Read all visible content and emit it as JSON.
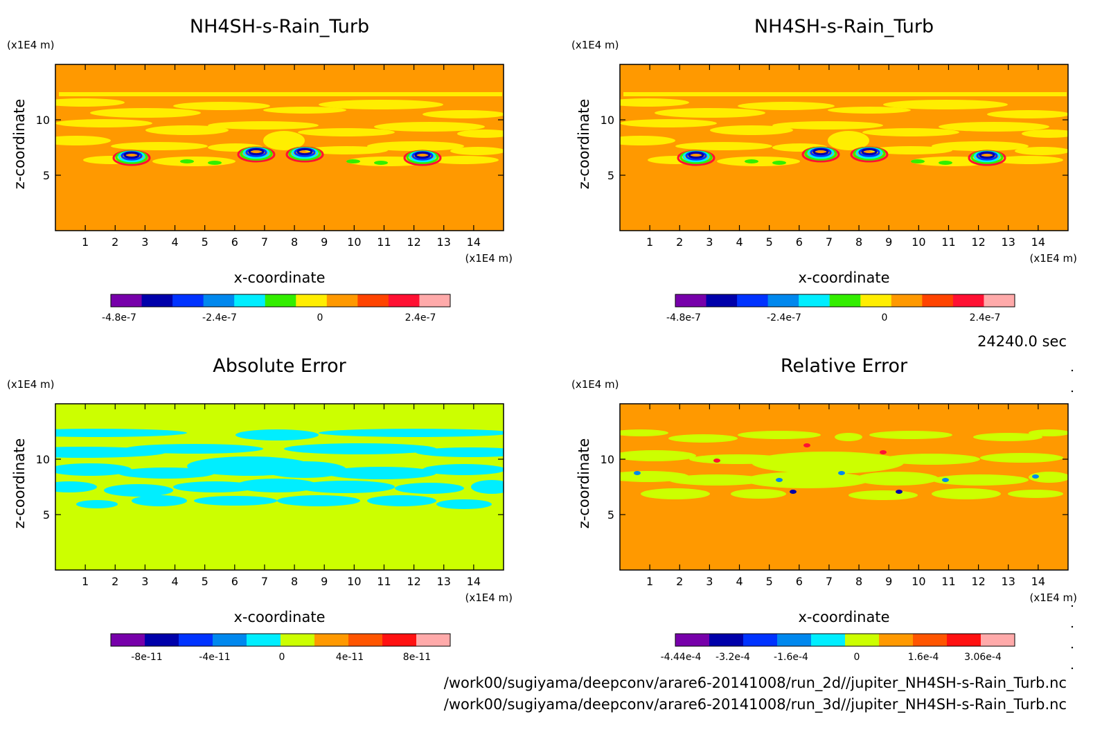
{
  "time_label": "24240.0 sec",
  "footer": {
    "line1": "/work00/sugiyama/deepconv/arare6-20141008/run_2d//jupiter_NH4SH-s-Rain_Turb.nc",
    "line2": "/work00/sugiyama/deepconv/arare6-20141008/run_3d//jupiter_NH4SH-s-Rain_Turb.nc"
  },
  "chart_data": [
    {
      "type": "heatmap",
      "title": "NH4SH-s-Rain_Turb",
      "xlabel": "x-coordinate",
      "ylabel": "z-coordinate",
      "x_unit": "(x1E4 m)",
      "y_unit": "(x1E4 m)",
      "xlim": [
        0,
        15
      ],
      "ylim": [
        0,
        15
      ],
      "x_ticks": [
        "1",
        "2",
        "3",
        "4",
        "5",
        "6",
        "7",
        "8",
        "9",
        "10",
        "11",
        "12",
        "13",
        "14"
      ],
      "y_ticks": [
        "5",
        "10"
      ],
      "background_color": "#ff9900",
      "feature_color": "#ffee00",
      "colorbar": {
        "colors": [
          "#7700aa",
          "#0000aa",
          "#0033ff",
          "#0088ee",
          "#00eeff",
          "#33ee00",
          "#ffee00",
          "#ff9900",
          "#ff4400",
          "#ff1133",
          "#ffaaaa"
        ],
        "tick_labels": [
          "-4.8e-7",
          "-2.4e-7",
          "0",
          "2.4e-7"
        ]
      }
    },
    {
      "type": "heatmap",
      "title": "NH4SH-s-Rain_Turb",
      "xlabel": "x-coordinate",
      "ylabel": "z-coordinate",
      "x_unit": "(x1E4 m)",
      "y_unit": "(x1E4 m)",
      "xlim": [
        0,
        15
      ],
      "ylim": [
        0,
        15
      ],
      "x_ticks": [
        "1",
        "2",
        "3",
        "4",
        "5",
        "6",
        "7",
        "8",
        "9",
        "10",
        "11",
        "12",
        "13",
        "14"
      ],
      "y_ticks": [
        "5",
        "10"
      ],
      "background_color": "#ff9900",
      "feature_color": "#ffee00",
      "colorbar": {
        "colors": [
          "#7700aa",
          "#0000aa",
          "#0033ff",
          "#0088ee",
          "#00eeff",
          "#33ee00",
          "#ffee00",
          "#ff9900",
          "#ff4400",
          "#ff1133",
          "#ffaaaa"
        ],
        "tick_labels": [
          "-4.8e-7",
          "-2.4e-7",
          "0",
          "2.4e-7"
        ]
      }
    },
    {
      "type": "heatmap",
      "title": "Absolute Error",
      "xlabel": "x-coordinate",
      "ylabel": "z-coordinate",
      "x_unit": "(x1E4 m)",
      "y_unit": "(x1E4 m)",
      "xlim": [
        0,
        15
      ],
      "ylim": [
        0,
        15
      ],
      "x_ticks": [
        "1",
        "2",
        "3",
        "4",
        "5",
        "6",
        "7",
        "8",
        "9",
        "10",
        "11",
        "12",
        "13",
        "14"
      ],
      "y_ticks": [
        "5",
        "10"
      ],
      "background_color": "#ccff00",
      "feature_color": "#00eeff",
      "colorbar": {
        "colors": [
          "#7700aa",
          "#0000aa",
          "#0033ff",
          "#0088ee",
          "#00eeff",
          "#ccff00",
          "#ff9900",
          "#ff5500",
          "#ff1111",
          "#ffaaaa"
        ],
        "tick_labels": [
          "-8e-11",
          "-4e-11",
          "0",
          "4e-11",
          "8e-11"
        ]
      }
    },
    {
      "type": "heatmap",
      "title": "Relative Error",
      "xlabel": "x-coordinate",
      "ylabel": "z-coordinate",
      "x_unit": "(x1E4 m)",
      "y_unit": "(x1E4 m)",
      "xlim": [
        0,
        15
      ],
      "ylim": [
        0,
        15
      ],
      "x_ticks": [
        "1",
        "2",
        "3",
        "4",
        "5",
        "6",
        "7",
        "8",
        "9",
        "10",
        "11",
        "12",
        "13",
        "14"
      ],
      "y_ticks": [
        "5",
        "10"
      ],
      "background_color": "#ff9900",
      "feature_color": "#ccff00",
      "colorbar": {
        "colors": [
          "#7700aa",
          "#0000aa",
          "#0033ff",
          "#0088ee",
          "#00eeff",
          "#ccff00",
          "#ff9900",
          "#ff5500",
          "#ff1111",
          "#ffaaaa"
        ],
        "tick_labels": [
          "-4.44e-4",
          "-3.2e-4",
          "-1.6e-4",
          "0",
          "1.6e-4",
          "3.06e-4"
        ]
      }
    }
  ]
}
